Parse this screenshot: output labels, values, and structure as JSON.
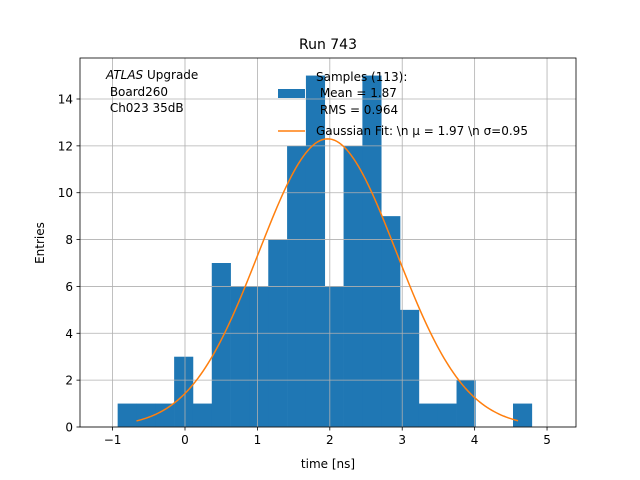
{
  "chart_data": {
    "type": "bar",
    "title": "Run 743",
    "xlabel": "time [ns]",
    "ylabel": "Entries",
    "xlim": [
      -1.45,
      5.4
    ],
    "ylim": [
      0,
      15.75
    ],
    "grid": true,
    "bin_width": 0.26,
    "bins": [
      {
        "left": -0.93,
        "count": 1
      },
      {
        "left": -0.67,
        "count": 1
      },
      {
        "left": -0.41,
        "count": 1
      },
      {
        "left": -0.15,
        "count": 3
      },
      {
        "left": 0.11,
        "count": 1
      },
      {
        "left": 0.37,
        "count": 7
      },
      {
        "left": 0.63,
        "count": 6
      },
      {
        "left": 0.89,
        "count": 6
      },
      {
        "left": 1.15,
        "count": 8
      },
      {
        "left": 1.41,
        "count": 12
      },
      {
        "left": 1.67,
        "count": 15
      },
      {
        "left": 1.93,
        "count": 6
      },
      {
        "left": 2.19,
        "count": 12
      },
      {
        "left": 2.45,
        "count": 15
      },
      {
        "left": 2.71,
        "count": 9
      },
      {
        "left": 2.97,
        "count": 5
      },
      {
        "left": 3.23,
        "count": 1
      },
      {
        "left": 3.49,
        "count": 1
      },
      {
        "left": 3.75,
        "count": 2
      },
      {
        "left": 4.01,
        "count": 0
      },
      {
        "left": 4.27,
        "count": 0
      },
      {
        "left": 4.53,
        "count": 1
      }
    ],
    "fit": {
      "amplitude": 12.3,
      "mu": 1.97,
      "sigma": 0.95,
      "x_range": [
        -0.67,
        4.6
      ]
    },
    "x_ticks": [
      "−1",
      "0",
      "1",
      "2",
      "3",
      "4",
      "5"
    ],
    "x_tick_values": [
      -1,
      0,
      1,
      2,
      3,
      4,
      5
    ],
    "y_ticks": [
      "0",
      "2",
      "4",
      "6",
      "8",
      "10",
      "12",
      "14"
    ],
    "y_tick_values": [
      0,
      2,
      4,
      6,
      8,
      10,
      12,
      14
    ],
    "legend": {
      "samples_line1": "Samples (113):",
      "samples_line2": " Mean = 1.87",
      "samples_line3": " RMS = 0.964",
      "fit_label": "Gaussian Fit: \\n μ = 1.97 \\n σ=0.95"
    },
    "annotation": {
      "atlas": "ATLAS",
      "upgrade": " Upgrade",
      "line2": " Board260",
      "line3": " Ch023 35dB"
    },
    "colors": {
      "bars": "#1f77b4",
      "fit": "#ff7f0e",
      "grid": "#b0b0b0"
    }
  }
}
